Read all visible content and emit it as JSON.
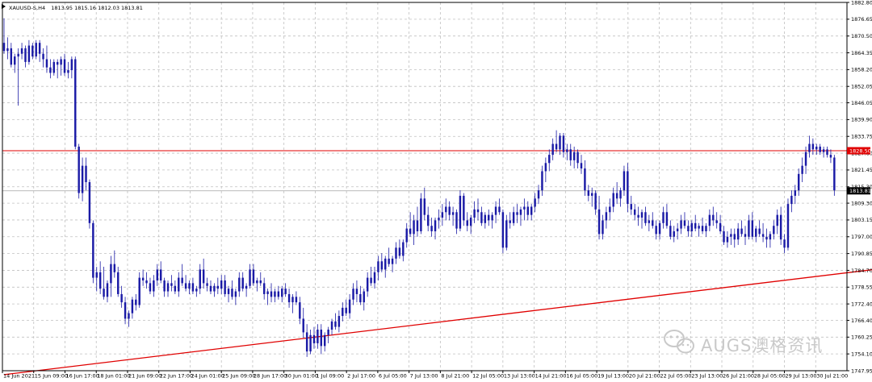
{
  "symbol_header": {
    "symbol": "XAUUSD-S,H4",
    "ohlc": "1813.95 1815.16 1812.03 1813.81"
  },
  "watermark": {
    "brand": "AUGS澳格资讯",
    "icon": "wechat-logo-icon"
  },
  "colors": {
    "background": "#ffffff",
    "grid": "#c0c0c0",
    "candle": "#1a1aa6",
    "line_red": "#e00000",
    "axis": "#000000",
    "tag_text_on_red": "#ffffff",
    "tag_current_bg": "#000000"
  },
  "chart_data": {
    "type": "candlestick",
    "ylim": [
      1747.95,
      1882.8
    ],
    "grid": true,
    "y_ticks": [
      "1882.80",
      "1876.65",
      "1870.50",
      "1864.35",
      "1858.20",
      "1852.05",
      "1846.05",
      "1839.90",
      "1833.75",
      "1827.60",
      "1821.45",
      "1815.30",
      "1809.30",
      "1803.15",
      "1797.00",
      "1790.85",
      "1784.70",
      "1778.55",
      "1772.40",
      "1766.40",
      "1760.25",
      "1754.10",
      "1747.95"
    ],
    "x_ticks": [
      "14 Jun 2021",
      "15 Jun 09:00",
      "16 Jun 17:00",
      "18 Jun 01:00",
      "21 Jun 09:00",
      "22 Jun 17:00",
      "24 Jun 01:00",
      "25 Jun 09:00",
      "28 Jun 17:00",
      "30 Jun 01:00",
      "1 Jul 09:00",
      "2 Jul 17:00",
      "6 Jul 05:00",
      "7 Jul 13:00",
      "8 Jul 21:00",
      "12 Jul 05:00",
      "13 Jul 13:00",
      "14 Jul 21:00",
      "16 Jul 05:00",
      "19 Jul 13:00",
      "20 Jul 21:00",
      "22 Jul 05:00",
      "23 Jul 13:00",
      "26 Jul 21:00",
      "28 Jul 05:00",
      "29 Jul 13:00",
      "30 Jul 21:00"
    ],
    "horizontal_line": {
      "price": 1828.5,
      "label": "1828.50"
    },
    "current_price": {
      "price": 1813.81,
      "label": "1813.81"
    },
    "trendline": {
      "start": {
        "bar": 0,
        "price": 1746.5
      },
      "end": {
        "bar": 263,
        "price": 1788.0
      }
    },
    "candles_ohlc": [
      [
        1868,
        1877,
        1864,
        1865
      ],
      [
        1865,
        1870,
        1862,
        1866
      ],
      [
        1866,
        1868,
        1859,
        1860
      ],
      [
        1860,
        1864,
        1857,
        1863
      ],
      [
        1863,
        1866,
        1845,
        1864
      ],
      [
        1864,
        1868,
        1862,
        1866
      ],
      [
        1866,
        1867,
        1859,
        1861
      ],
      [
        1861,
        1869,
        1860,
        1867
      ],
      [
        1867,
        1868,
        1862,
        1863
      ],
      [
        1863,
        1869,
        1862,
        1868
      ],
      [
        1868,
        1869,
        1861,
        1864
      ],
      [
        1864,
        1866,
        1859,
        1862
      ],
      [
        1862,
        1867,
        1857,
        1859
      ],
      [
        1859,
        1862,
        1855,
        1857
      ],
      [
        1857,
        1862,
        1856,
        1861
      ],
      [
        1861,
        1862,
        1855,
        1860
      ],
      [
        1860,
        1863,
        1856,
        1862
      ],
      [
        1862,
        1864,
        1856,
        1857
      ],
      [
        1857,
        1861,
        1855,
        1858
      ],
      [
        1858,
        1863,
        1855,
        1862
      ],
      [
        1862,
        1863,
        1829,
        1830
      ],
      [
        1830,
        1831,
        1811,
        1813
      ],
      [
        1813,
        1826,
        1810,
        1823
      ],
      [
        1823,
        1826,
        1814,
        1817
      ],
      [
        1817,
        1818,
        1800,
        1802
      ],
      [
        1802,
        1803,
        1780,
        1782
      ],
      [
        1782,
        1786,
        1777,
        1784
      ],
      [
        1784,
        1788,
        1776,
        1778
      ],
      [
        1778,
        1786,
        1774,
        1775
      ],
      [
        1775,
        1781,
        1773,
        1780
      ],
      [
        1780,
        1790,
        1775,
        1787
      ],
      [
        1787,
        1792,
        1782,
        1784
      ],
      [
        1784,
        1786,
        1775,
        1776
      ],
      [
        1776,
        1779,
        1771,
        1773
      ],
      [
        1773,
        1775,
        1765,
        1767
      ],
      [
        1767,
        1770,
        1764,
        1769
      ],
      [
        1769,
        1775,
        1767,
        1774
      ],
      [
        1774,
        1776,
        1770,
        1772
      ],
      [
        1772,
        1784,
        1771,
        1782
      ],
      [
        1782,
        1785,
        1779,
        1781
      ],
      [
        1781,
        1784,
        1778,
        1780
      ],
      [
        1780,
        1782,
        1776,
        1777
      ],
      [
        1777,
        1783,
        1775,
        1781
      ],
      [
        1781,
        1787,
        1779,
        1785
      ],
      [
        1785,
        1788,
        1780,
        1781
      ],
      [
        1781,
        1782,
        1775,
        1777
      ],
      [
        1777,
        1781,
        1775,
        1780
      ],
      [
        1780,
        1783,
        1777,
        1779
      ],
      [
        1779,
        1781,
        1776,
        1777
      ],
      [
        1777,
        1784,
        1775,
        1782
      ],
      [
        1782,
        1787,
        1779,
        1780
      ],
      [
        1780,
        1783,
        1777,
        1778
      ],
      [
        1778,
        1781,
        1776,
        1780
      ],
      [
        1780,
        1782,
        1776,
        1777
      ],
      [
        1777,
        1779,
        1775,
        1778
      ],
      [
        1778,
        1787,
        1776,
        1785
      ],
      [
        1785,
        1789,
        1778,
        1780
      ],
      [
        1780,
        1782,
        1777,
        1779
      ],
      [
        1779,
        1781,
        1776,
        1777
      ],
      [
        1777,
        1780,
        1775,
        1779
      ],
      [
        1779,
        1782,
        1776,
        1778
      ],
      [
        1778,
        1783,
        1776,
        1781
      ],
      [
        1781,
        1783,
        1775,
        1776
      ],
      [
        1776,
        1779,
        1773,
        1778
      ],
      [
        1778,
        1781,
        1774,
        1775
      ],
      [
        1775,
        1778,
        1772,
        1777
      ],
      [
        1777,
        1784,
        1775,
        1782
      ],
      [
        1782,
        1784,
        1777,
        1778
      ],
      [
        1778,
        1780,
        1775,
        1779
      ],
      [
        1779,
        1787,
        1778,
        1785
      ],
      [
        1785,
        1787,
        1779,
        1780
      ],
      [
        1780,
        1782,
        1777,
        1781
      ],
      [
        1781,
        1784,
        1779,
        1780
      ],
      [
        1780,
        1782,
        1774,
        1776
      ],
      [
        1776,
        1778,
        1772,
        1777
      ],
      [
        1777,
        1780,
        1773,
        1775
      ],
      [
        1775,
        1778,
        1773,
        1777
      ],
      [
        1777,
        1779,
        1774,
        1775
      ],
      [
        1775,
        1779,
        1773,
        1778
      ],
      [
        1778,
        1780,
        1775,
        1776
      ],
      [
        1776,
        1778,
        1771,
        1773
      ],
      [
        1773,
        1776,
        1769,
        1775
      ],
      [
        1775,
        1777,
        1772,
        1773
      ],
      [
        1773,
        1775,
        1765,
        1767
      ],
      [
        1767,
        1771,
        1760,
        1762
      ],
      [
        1762,
        1765,
        1753,
        1755
      ],
      [
        1755,
        1763,
        1754,
        1761
      ],
      [
        1761,
        1764,
        1756,
        1758
      ],
      [
        1758,
        1765,
        1756,
        1763
      ],
      [
        1763,
        1765,
        1754,
        1757
      ],
      [
        1757,
        1762,
        1755,
        1761
      ],
      [
        1761,
        1764,
        1758,
        1763
      ],
      [
        1763,
        1767,
        1761,
        1766
      ],
      [
        1766,
        1769,
        1763,
        1764
      ],
      [
        1764,
        1770,
        1762,
        1768
      ],
      [
        1768,
        1773,
        1766,
        1771
      ],
      [
        1771,
        1774,
        1768,
        1769
      ],
      [
        1769,
        1776,
        1767,
        1774
      ],
      [
        1774,
        1780,
        1772,
        1778
      ],
      [
        1778,
        1781,
        1773,
        1776
      ],
      [
        1776,
        1779,
        1772,
        1773
      ],
      [
        1773,
        1778,
        1770,
        1777
      ],
      [
        1777,
        1784,
        1775,
        1782
      ],
      [
        1782,
        1786,
        1779,
        1780
      ],
      [
        1780,
        1786,
        1778,
        1784
      ],
      [
        1784,
        1790,
        1781,
        1788
      ],
      [
        1788,
        1791,
        1784,
        1785
      ],
      [
        1785,
        1790,
        1782,
        1789
      ],
      [
        1789,
        1793,
        1786,
        1787
      ],
      [
        1787,
        1790,
        1784,
        1789
      ],
      [
        1789,
        1795,
        1787,
        1793
      ],
      [
        1793,
        1796,
        1789,
        1790
      ],
      [
        1790,
        1796,
        1788,
        1795
      ],
      [
        1795,
        1802,
        1793,
        1800
      ],
      [
        1800,
        1806,
        1797,
        1798
      ],
      [
        1798,
        1805,
        1794,
        1803
      ],
      [
        1803,
        1808,
        1797,
        1799
      ],
      [
        1799,
        1813,
        1798,
        1811
      ],
      [
        1811,
        1815,
        1803,
        1805
      ],
      [
        1805,
        1808,
        1799,
        1801
      ],
      [
        1801,
        1804,
        1797,
        1799
      ],
      [
        1799,
        1804,
        1796,
        1803
      ],
      [
        1803,
        1807,
        1800,
        1804
      ],
      [
        1804,
        1809,
        1801,
        1806
      ],
      [
        1806,
        1811,
        1803,
        1808
      ],
      [
        1808,
        1810,
        1803,
        1805
      ],
      [
        1805,
        1808,
        1801,
        1806
      ],
      [
        1806,
        1807,
        1798,
        1800
      ],
      [
        1800,
        1814,
        1799,
        1812
      ],
      [
        1812,
        1813,
        1801,
        1803
      ],
      [
        1803,
        1806,
        1799,
        1801
      ],
      [
        1801,
        1805,
        1798,
        1804
      ],
      [
        1804,
        1810,
        1802,
        1807
      ],
      [
        1807,
        1811,
        1803,
        1806
      ],
      [
        1806,
        1808,
        1801,
        1802
      ],
      [
        1802,
        1806,
        1800,
        1805
      ],
      [
        1805,
        1807,
        1801,
        1803
      ],
      [
        1803,
        1806,
        1800,
        1805
      ],
      [
        1805,
        1810,
        1802,
        1808
      ],
      [
        1808,
        1811,
        1805,
        1806
      ],
      [
        1806,
        1807,
        1791,
        1793
      ],
      [
        1793,
        1805,
        1792,
        1803
      ],
      [
        1803,
        1806,
        1800,
        1802
      ],
      [
        1802,
        1808,
        1801,
        1806
      ],
      [
        1806,
        1809,
        1802,
        1805
      ],
      [
        1805,
        1808,
        1801,
        1807
      ],
      [
        1807,
        1811,
        1803,
        1808
      ],
      [
        1808,
        1810,
        1803,
        1805
      ],
      [
        1805,
        1809,
        1803,
        1808
      ],
      [
        1808,
        1813,
        1806,
        1811
      ],
      [
        1811,
        1816,
        1809,
        1814
      ],
      [
        1814,
        1823,
        1812,
        1821
      ],
      [
        1821,
        1826,
        1817,
        1824
      ],
      [
        1824,
        1829,
        1821,
        1827
      ],
      [
        1827,
        1833,
        1825,
        1831
      ],
      [
        1831,
        1836,
        1828,
        1829
      ],
      [
        1829,
        1835,
        1827,
        1834
      ],
      [
        1834,
        1835,
        1826,
        1828
      ],
      [
        1828,
        1831,
        1825,
        1829
      ],
      [
        1829,
        1831,
        1823,
        1825
      ],
      [
        1825,
        1830,
        1822,
        1828
      ],
      [
        1828,
        1829,
        1822,
        1824
      ],
      [
        1824,
        1827,
        1820,
        1822
      ],
      [
        1822,
        1825,
        1812,
        1814
      ],
      [
        1814,
        1816,
        1810,
        1812
      ],
      [
        1812,
        1815,
        1808,
        1813
      ],
      [
        1813,
        1814,
        1805,
        1807
      ],
      [
        1807,
        1812,
        1796,
        1798
      ],
      [
        1798,
        1805,
        1796,
        1803
      ],
      [
        1803,
        1808,
        1800,
        1806
      ],
      [
        1806,
        1811,
        1803,
        1808
      ],
      [
        1808,
        1815,
        1806,
        1813
      ],
      [
        1813,
        1817,
        1809,
        1811
      ],
      [
        1811,
        1815,
        1808,
        1814
      ],
      [
        1814,
        1823,
        1812,
        1821
      ],
      [
        1821,
        1824,
        1806,
        1809
      ],
      [
        1809,
        1812,
        1805,
        1807
      ],
      [
        1807,
        1809,
        1803,
        1805
      ],
      [
        1805,
        1808,
        1801,
        1804
      ],
      [
        1804,
        1807,
        1800,
        1806
      ],
      [
        1806,
        1808,
        1801,
        1802
      ],
      [
        1802,
        1805,
        1799,
        1803
      ],
      [
        1803,
        1806,
        1800,
        1801
      ],
      [
        1801,
        1803,
        1796,
        1798
      ],
      [
        1798,
        1803,
        1796,
        1802
      ],
      [
        1802,
        1808,
        1800,
        1806
      ],
      [
        1806,
        1809,
        1800,
        1801
      ],
      [
        1801,
        1803,
        1796,
        1797
      ],
      [
        1797,
        1801,
        1795,
        1799
      ],
      [
        1799,
        1802,
        1796,
        1800
      ],
      [
        1800,
        1805,
        1798,
        1803
      ],
      [
        1803,
        1806,
        1800,
        1801
      ],
      [
        1801,
        1803,
        1797,
        1799
      ],
      [
        1799,
        1803,
        1797,
        1802
      ],
      [
        1802,
        1805,
        1799,
        1800
      ],
      [
        1800,
        1802,
        1797,
        1801
      ],
      [
        1801,
        1804,
        1798,
        1799
      ],
      [
        1799,
        1802,
        1797,
        1801
      ],
      [
        1801,
        1807,
        1799,
        1805
      ],
      [
        1805,
        1808,
        1801,
        1803
      ],
      [
        1803,
        1806,
        1800,
        1802
      ],
      [
        1802,
        1805,
        1798,
        1799
      ],
      [
        1799,
        1801,
        1794,
        1795
      ],
      [
        1795,
        1799,
        1793,
        1797
      ],
      [
        1797,
        1800,
        1794,
        1798
      ],
      [
        1798,
        1800,
        1793,
        1796
      ],
      [
        1796,
        1802,
        1794,
        1800
      ],
      [
        1800,
        1803,
        1797,
        1798
      ],
      [
        1798,
        1801,
        1794,
        1797
      ],
      [
        1797,
        1805,
        1796,
        1803
      ],
      [
        1803,
        1806,
        1796,
        1797
      ],
      [
        1797,
        1801,
        1795,
        1800
      ],
      [
        1800,
        1803,
        1797,
        1798
      ],
      [
        1798,
        1802,
        1795,
        1797
      ],
      [
        1797,
        1800,
        1793,
        1796
      ],
      [
        1796,
        1799,
        1793,
        1798
      ],
      [
        1798,
        1803,
        1796,
        1801
      ],
      [
        1801,
        1807,
        1798,
        1805
      ],
      [
        1805,
        1808,
        1794,
        1796
      ],
      [
        1796,
        1798,
        1791,
        1793
      ],
      [
        1793,
        1811,
        1792,
        1809
      ],
      [
        1809,
        1814,
        1806,
        1812
      ],
      [
        1812,
        1816,
        1809,
        1814
      ],
      [
        1814,
        1822,
        1812,
        1820
      ],
      [
        1820,
        1826,
        1817,
        1823
      ],
      [
        1823,
        1830,
        1820,
        1828
      ],
      [
        1828,
        1834,
        1826,
        1831
      ],
      [
        1831,
        1833,
        1827,
        1829
      ],
      [
        1829,
        1831,
        1827,
        1830
      ],
      [
        1830,
        1831,
        1827,
        1828
      ],
      [
        1828,
        1830,
        1826,
        1829
      ],
      [
        1829,
        1830,
        1826,
        1827
      ],
      [
        1827,
        1829,
        1824,
        1826
      ],
      [
        1826,
        1827,
        1812,
        1814
      ]
    ]
  }
}
